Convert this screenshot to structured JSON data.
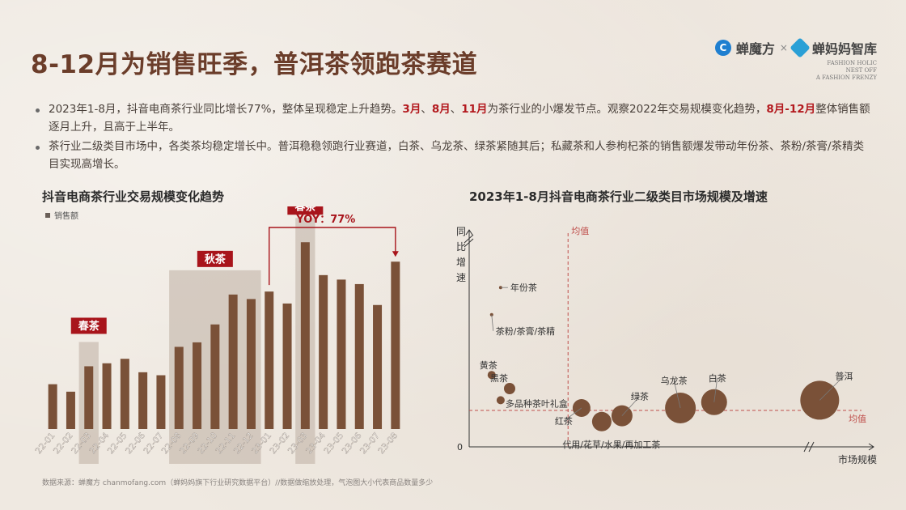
{
  "page": {
    "title": "8-12月为销售旺季，普洱茶领跑茶赛道",
    "logo_brand": "蝉魔方",
    "logo_sep": "×",
    "logo_partner": "蝉妈妈智库",
    "slogan_lines": [
      "FASHION HOLIC",
      "NEST OFF",
      "A FASHION FRENZY"
    ],
    "source_note": "数据来源：蝉魔方 chanmofang.com（蝉妈妈旗下行业研究数据平台）//数据做缩放处理，气泡图大小代表商品数量多少"
  },
  "bullets": [
    {
      "segments": [
        {
          "text": "2023年1-8月，抖音电商茶行业同比增长77%，整体呈现稳定上升趋势。",
          "hl": false
        },
        {
          "text": "3月",
          "hl": true
        },
        {
          "text": "、",
          "hl": false
        },
        {
          "text": "8月",
          "hl": true
        },
        {
          "text": "、",
          "hl": false
        },
        {
          "text": "11月",
          "hl": true
        },
        {
          "text": "为茶行业的小爆发节点。观察2022年交易规模变化趋势，",
          "hl": false
        },
        {
          "text": "8月-12月",
          "hl": true
        },
        {
          "text": "整体销售额逐月上升，且高于上半年。",
          "hl": false
        }
      ]
    },
    {
      "segments": [
        {
          "text": "茶行业二级类目市场中，各类茶均稳定增长中。普洱稳稳领跑行业赛道，白茶、乌龙茶、绿茶紧随其后；私藏茶和人参枸杞茶的销售额爆发带动年份茶、茶粉/茶膏/茶精类目实现高增长。",
          "hl": false
        }
      ]
    }
  ],
  "colors": {
    "bar": "#7a5138",
    "highlight_box": "#bdaea2",
    "label_red": "#a8141b",
    "avg_line": "#c0504d",
    "bubble": "#7a5138"
  },
  "chart_data": [
    {
      "type": "bar",
      "title": "抖音电商茶行业交易规模变化趋势",
      "legend": "销售额",
      "categories": [
        "22-01",
        "22-02",
        "22-03",
        "22-04",
        "22-05",
        "22-06",
        "22-07",
        "22-08",
        "22-09",
        "22-10",
        "22-11",
        "22-12",
        "23-01",
        "23-02",
        "23-03",
        "23-04",
        "23-05",
        "23-06",
        "23-07",
        "23-08"
      ],
      "values": [
        30,
        25,
        42,
        44,
        47,
        38,
        36,
        55,
        58,
        70,
        90,
        87,
        92,
        84,
        125,
        103,
        100,
        97,
        83,
        112
      ],
      "ylim": [
        0,
        130
      ],
      "annotations": [
        {
          "label": "春茶",
          "categories": [
            "22-03"
          ]
        },
        {
          "label": "秋茶",
          "categories": [
            "22-08",
            "22-09",
            "22-10",
            "22-11",
            "22-12"
          ]
        },
        {
          "label": "春茶",
          "categories": [
            "23-03"
          ]
        }
      ],
      "yoy": {
        "label": "YOY：77%",
        "from": "23-01",
        "to": "23-08"
      }
    },
    {
      "type": "scatter",
      "title": "2023年1-8月抖音电商茶行业二级类目市场规模及增速",
      "xlabel": "市场规模",
      "ylabel": "同比增速",
      "origin_label": "0",
      "avg_x_label": "均值",
      "avg_y_label": "均值",
      "points": [
        {
          "name": "年份茶",
          "x": 1.4,
          "y": 82,
          "size": 2
        },
        {
          "name": "茶粉/茶膏/茶精",
          "x": 1.0,
          "y": 68,
          "size": 2
        },
        {
          "name": "黄茶",
          "x": 1.0,
          "y": 37,
          "size": 5
        },
        {
          "name": "黑茶",
          "x": 1.8,
          "y": 30,
          "size": 7
        },
        {
          "name": "多品种茶叶礼盒",
          "x": 1.4,
          "y": 24,
          "size": 5
        },
        {
          "name": "红茶",
          "x": 5.0,
          "y": 20,
          "size": 11
        },
        {
          "name": "代用/花草/水果/再加工茶",
          "x": 5.9,
          "y": 13,
          "size": 12
        },
        {
          "name": "绿茶",
          "x": 6.8,
          "y": 16,
          "size": 13
        },
        {
          "name": "乌龙茶",
          "x": 9.4,
          "y": 20,
          "size": 19
        },
        {
          "name": "白茶",
          "x": 10.9,
          "y": 23,
          "size": 16
        },
        {
          "name": "普洱",
          "x": 15.6,
          "y": 24,
          "size": 24
        }
      ]
    }
  ]
}
